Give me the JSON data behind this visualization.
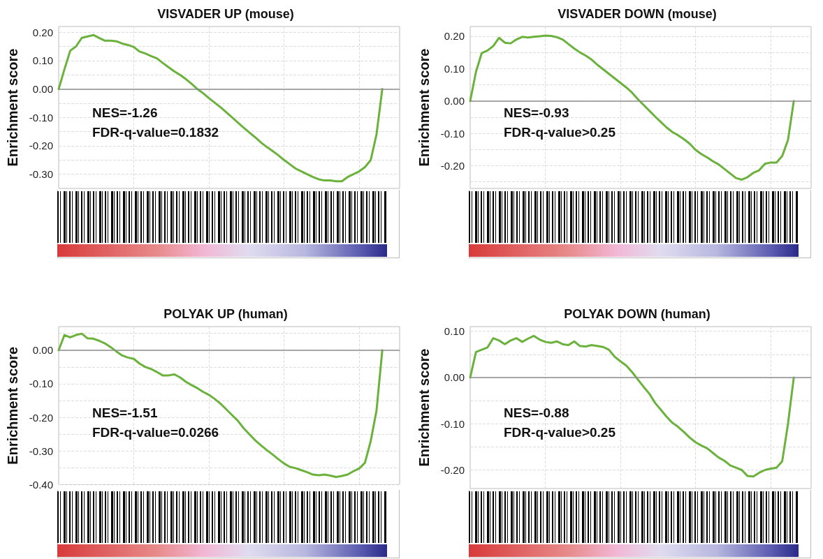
{
  "chart_data": [
    {
      "type": "line",
      "title": "VISVADER UP (mouse)",
      "ylabel": "Enrichment score",
      "tick_labels": "y",
      "grid": true,
      "line_style": "solid",
      "categories": [
        null,
        null,
        null,
        null,
        null,
        null,
        null,
        null,
        null,
        null,
        null,
        null,
        null,
        null,
        null,
        null,
        null,
        null,
        null,
        null,
        null,
        null,
        null,
        null,
        null,
        null,
        null,
        null,
        null,
        null,
        null,
        null,
        null,
        null,
        null,
        null,
        null,
        null,
        null,
        null,
        null,
        null,
        null,
        null,
        null,
        null,
        null,
        null,
        null,
        null,
        null,
        null,
        null,
        null,
        null,
        null,
        null,
        null,
        null,
        null
      ],
      "series": [
        {
          "color": "#6ab23c",
          "values": [
            0,
            0.07,
            0.135,
            0.15,
            0.18,
            0.185,
            0.19,
            0.18,
            0.17,
            0.17,
            0.168,
            0.16,
            0.155,
            0.148,
            0.132,
            0.125,
            0.116,
            0.108,
            0.092,
            0.077,
            0.062,
            0.05,
            0.035,
            0.018,
            0,
            -0.015,
            -0.032,
            -0.048,
            -0.064,
            -0.082,
            -0.1,
            -0.118,
            -0.136,
            -0.153,
            -0.17,
            -0.188,
            -0.204,
            -0.218,
            -0.233,
            -0.25,
            -0.265,
            -0.28,
            -0.29,
            -0.3,
            -0.31,
            -0.318,
            -0.322,
            -0.322,
            -0.325,
            -0.325,
            -0.31,
            -0.3,
            -0.29,
            -0.275,
            -0.25,
            -0.16,
            0,
            null,
            null,
            null
          ]
        }
      ],
      "ylim": [
        -0.35,
        0.22
      ],
      "yticks": [
        {
          "value": -0.35,
          "label": null
        },
        {
          "value": -0.3,
          "label": "-0.30"
        },
        {
          "value": -0.25,
          "label": null
        },
        {
          "value": -0.2,
          "label": "-0.20"
        },
        {
          "value": -0.15,
          "label": null
        },
        {
          "value": -0.1,
          "label": "-0.10"
        },
        {
          "value": -0.05,
          "label": null
        },
        {
          "value": 0,
          "label": "0.00"
        },
        {
          "value": 0.05,
          "label": null
        },
        {
          "value": 0.1,
          "label": "0.10"
        },
        {
          "value": 0.15,
          "label": null
        },
        {
          "value": 0.2,
          "label": "0.20"
        }
      ],
      "ref_lines": [
        {
          "axis": "y",
          "value": 0,
          "color": "#8c8c8c"
        }
      ],
      "annotations": [
        "NES=-1.26",
        "FDR-q-value=0.1832"
      ]
    },
    {
      "type": "line",
      "title": "VISVADER DOWN (mouse)",
      "ylabel": "Enrichment score",
      "tick_labels": "y",
      "grid": true,
      "line_style": "solid",
      "categories": [
        null,
        null,
        null,
        null,
        null,
        null,
        null,
        null,
        null,
        null,
        null,
        null,
        null,
        null,
        null,
        null,
        null,
        null,
        null,
        null,
        null,
        null,
        null,
        null,
        null,
        null,
        null,
        null,
        null,
        null,
        null,
        null,
        null,
        null,
        null,
        null,
        null,
        null,
        null,
        null,
        null,
        null,
        null,
        null,
        null,
        null,
        null,
        null,
        null,
        null,
        null,
        null,
        null,
        null,
        null,
        null,
        null,
        null,
        null,
        null
      ],
      "series": [
        {
          "color": "#6ab23c",
          "values": [
            0,
            0.09,
            0.148,
            0.156,
            0.17,
            0.195,
            0.18,
            0.178,
            0.19,
            0.198,
            0.196,
            0.198,
            0.2,
            0.202,
            0.201,
            0.197,
            0.19,
            0.176,
            0.162,
            0.15,
            0.14,
            0.128,
            0.112,
            0.098,
            0.084,
            0.07,
            0.056,
            0.042,
            0.026,
            0.006,
            -0.012,
            -0.03,
            -0.048,
            -0.065,
            -0.082,
            -0.096,
            -0.106,
            -0.118,
            -0.132,
            -0.151,
            -0.164,
            -0.174,
            -0.186,
            -0.196,
            -0.21,
            -0.224,
            -0.238,
            -0.243,
            -0.235,
            -0.222,
            -0.214,
            -0.194,
            -0.19,
            -0.19,
            -0.17,
            -0.12,
            0,
            null,
            null,
            null
          ]
        }
      ],
      "ylim": [
        -0.27,
        0.23
      ],
      "yticks": [
        {
          "value": -0.25,
          "label": null
        },
        {
          "value": -0.2,
          "label": "-0.20"
        },
        {
          "value": -0.15,
          "label": null
        },
        {
          "value": -0.1,
          "label": "-0.10"
        },
        {
          "value": -0.05,
          "label": null
        },
        {
          "value": 0,
          "label": "0.00"
        },
        {
          "value": 0.05,
          "label": null
        },
        {
          "value": 0.1,
          "label": "0.10"
        },
        {
          "value": 0.15,
          "label": null
        },
        {
          "value": 0.2,
          "label": "0.20"
        }
      ],
      "ref_lines": [
        {
          "axis": "y",
          "value": 0,
          "color": "#8c8c8c"
        }
      ],
      "annotations": [
        "NES=-0.93",
        "FDR-q-value>0.25"
      ]
    },
    {
      "type": "line",
      "title": "POLYAK UP (human)",
      "ylabel": "Enrichment score",
      "tick_labels": "y",
      "grid": true,
      "line_style": "solid",
      "categories": [
        null,
        null,
        null,
        null,
        null,
        null,
        null,
        null,
        null,
        null,
        null,
        null,
        null,
        null,
        null,
        null,
        null,
        null,
        null,
        null,
        null,
        null,
        null,
        null,
        null,
        null,
        null,
        null,
        null,
        null,
        null,
        null,
        null,
        null,
        null,
        null,
        null,
        null,
        null,
        null,
        null,
        null,
        null,
        null,
        null,
        null,
        null,
        null,
        null,
        null,
        null,
        null,
        null,
        null,
        null,
        null,
        null,
        null,
        null,
        null
      ],
      "series": [
        {
          "color": "#6ab23c",
          "values": [
            0,
            0.045,
            0.038,
            0.045,
            0.049,
            0.035,
            0.034,
            0.028,
            0.02,
            0.009,
            -0.004,
            -0.016,
            -0.022,
            -0.026,
            -0.04,
            -0.05,
            -0.056,
            -0.065,
            -0.075,
            -0.075,
            -0.072,
            -0.081,
            -0.094,
            -0.104,
            -0.113,
            -0.124,
            -0.133,
            -0.145,
            -0.159,
            -0.176,
            -0.193,
            -0.21,
            -0.232,
            -0.25,
            -0.268,
            -0.283,
            -0.297,
            -0.31,
            -0.324,
            -0.337,
            -0.347,
            -0.351,
            -0.357,
            -0.363,
            -0.37,
            -0.372,
            -0.37,
            -0.373,
            -0.377,
            -0.374,
            -0.37,
            -0.36,
            -0.352,
            -0.335,
            -0.27,
            -0.18,
            0,
            null,
            null,
            null
          ]
        }
      ],
      "ylim": [
        -0.4,
        0.07
      ],
      "yticks": [
        {
          "value": -0.4,
          "label": "-0.40"
        },
        {
          "value": -0.35,
          "label": null
        },
        {
          "value": -0.3,
          "label": "-0.30"
        },
        {
          "value": -0.25,
          "label": null
        },
        {
          "value": -0.2,
          "label": "-0.20"
        },
        {
          "value": -0.15,
          "label": null
        },
        {
          "value": -0.1,
          "label": "-0.10"
        },
        {
          "value": -0.05,
          "label": null
        },
        {
          "value": 0,
          "label": "0.00"
        },
        {
          "value": 0.05,
          "label": null
        }
      ],
      "ref_lines": [
        {
          "axis": "y",
          "value": 0,
          "color": "#8c8c8c"
        }
      ],
      "annotations": [
        "NES=-1.51",
        "FDR-q-value=0.0266"
      ]
    },
    {
      "type": "line",
      "title": "POLYAK DOWN (human)",
      "ylabel": "Enrichment score",
      "tick_labels": "y",
      "grid": true,
      "line_style": "solid",
      "categories": [
        null,
        null,
        null,
        null,
        null,
        null,
        null,
        null,
        null,
        null,
        null,
        null,
        null,
        null,
        null,
        null,
        null,
        null,
        null,
        null,
        null,
        null,
        null,
        null,
        null,
        null,
        null,
        null,
        null,
        null,
        null,
        null,
        null,
        null,
        null,
        null,
        null,
        null,
        null,
        null,
        null,
        null,
        null,
        null,
        null,
        null,
        null,
        null,
        null,
        null,
        null,
        null,
        null,
        null,
        null,
        null,
        null,
        null,
        null,
        null
      ],
      "series": [
        {
          "color": "#6ab23c",
          "values": [
            0,
            0.055,
            0.06,
            0.065,
            0.085,
            0.08,
            0.072,
            0.08,
            0.085,
            0.077,
            0.084,
            0.09,
            0.082,
            0.077,
            0.075,
            0.078,
            0.072,
            0.07,
            0.078,
            0.068,
            0.067,
            0.07,
            0.068,
            0.066,
            0.06,
            0.045,
            0.035,
            0.026,
            0.012,
            -0.004,
            -0.02,
            -0.035,
            -0.055,
            -0.07,
            -0.085,
            -0.098,
            -0.107,
            -0.118,
            -0.13,
            -0.14,
            -0.147,
            -0.153,
            -0.163,
            -0.173,
            -0.18,
            -0.19,
            -0.195,
            -0.2,
            -0.213,
            -0.214,
            -0.206,
            -0.2,
            -0.197,
            -0.195,
            -0.181,
            -0.1,
            0,
            null,
            null,
            null
          ]
        }
      ],
      "ylim": [
        -0.24,
        0.11
      ],
      "yticks": [
        {
          "value": -0.2,
          "label": "-0.20"
        },
        {
          "value": -0.15,
          "label": null
        },
        {
          "value": -0.1,
          "label": "-0.10"
        },
        {
          "value": -0.05,
          "label": null
        },
        {
          "value": 0,
          "label": "0.00"
        },
        {
          "value": 0.05,
          "label": null
        },
        {
          "value": 0.1,
          "label": "0.10"
        }
      ],
      "ref_lines": [
        {
          "axis": "y",
          "value": 0,
          "color": "#8c8c8c"
        }
      ],
      "annotations": [
        "NES=-0.88",
        "FDR-q-value>0.25"
      ]
    }
  ]
}
